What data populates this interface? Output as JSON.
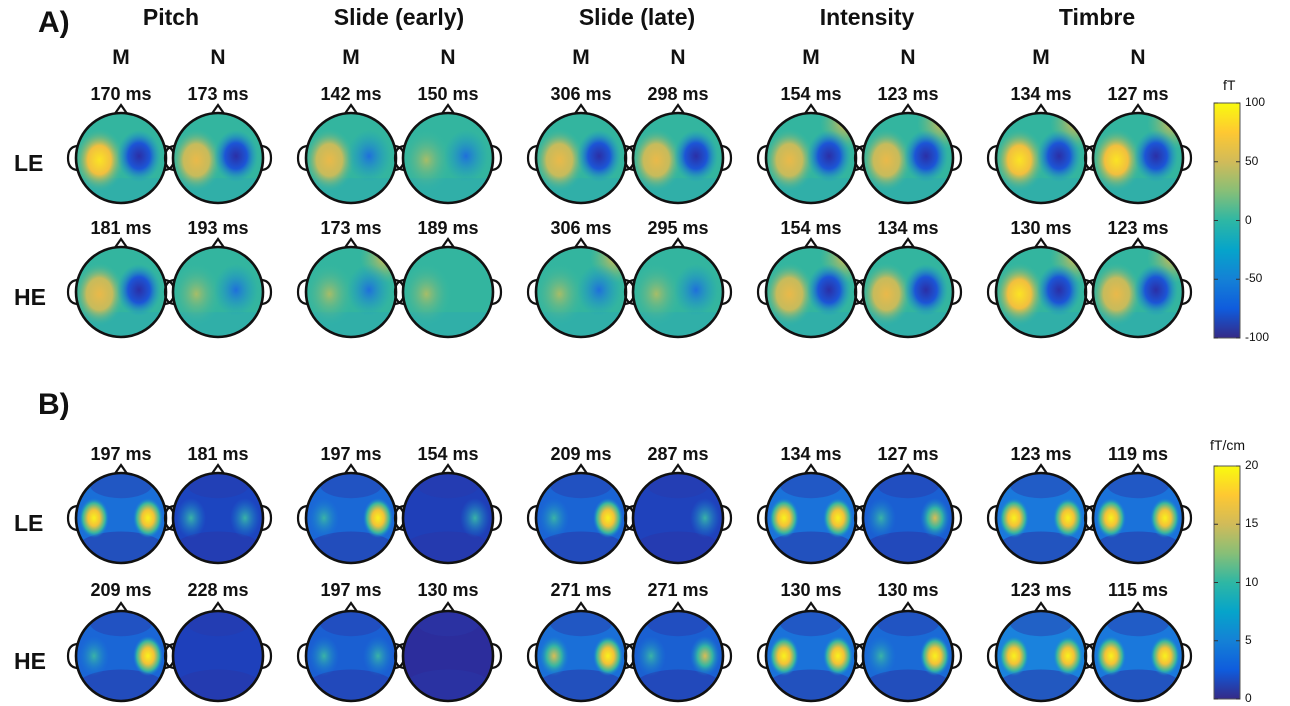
{
  "panels": [
    {
      "label": "A)",
      "unit": "fT",
      "colorbar_ticks": [
        "100",
        "50",
        "0",
        "-50",
        "-100"
      ],
      "conditions": [
        "Pitch",
        "Slide (early)",
        "Slide (late)",
        "Intensity",
        "Timbre"
      ],
      "groups": [
        "M",
        "N"
      ],
      "rows": [
        {
          "label": "LE",
          "latencies": [
            "170 ms",
            "173 ms",
            "142 ms",
            "150 ms",
            "306 ms",
            "298 ms",
            "154 ms",
            "123 ms",
            "134 ms",
            "127 ms"
          ]
        },
        {
          "label": "HE",
          "latencies": [
            "181 ms",
            "193 ms",
            "173 ms",
            "189 ms",
            "306 ms",
            "295 ms",
            "154 ms",
            "134 ms",
            "130 ms",
            "123 ms"
          ]
        }
      ]
    },
    {
      "label": "B)",
      "unit": "fT/cm",
      "colorbar_ticks": [
        "20",
        "15",
        "10",
        "5",
        "0"
      ],
      "rows": [
        {
          "label": "LE",
          "latencies": [
            "197 ms",
            "181 ms",
            "197 ms",
            "154 ms",
            "209 ms",
            "287 ms",
            "134 ms",
            "127 ms",
            "123 ms",
            "119 ms"
          ]
        },
        {
          "label": "HE",
          "latencies": [
            "209 ms",
            "228 ms",
            "197 ms",
            "130 ms",
            "271 ms",
            "271 ms",
            "130 ms",
            "130 ms",
            "123 ms",
            "115 ms"
          ]
        }
      ]
    }
  ],
  "colors": {
    "parula": [
      "#352a87",
      "#0f5cdd",
      "#1481d6",
      "#06a4ca",
      "#2eb7a4",
      "#87bf77",
      "#d1bb59",
      "#fec832",
      "#f9fb0e"
    ],
    "outline": "#111111"
  }
}
